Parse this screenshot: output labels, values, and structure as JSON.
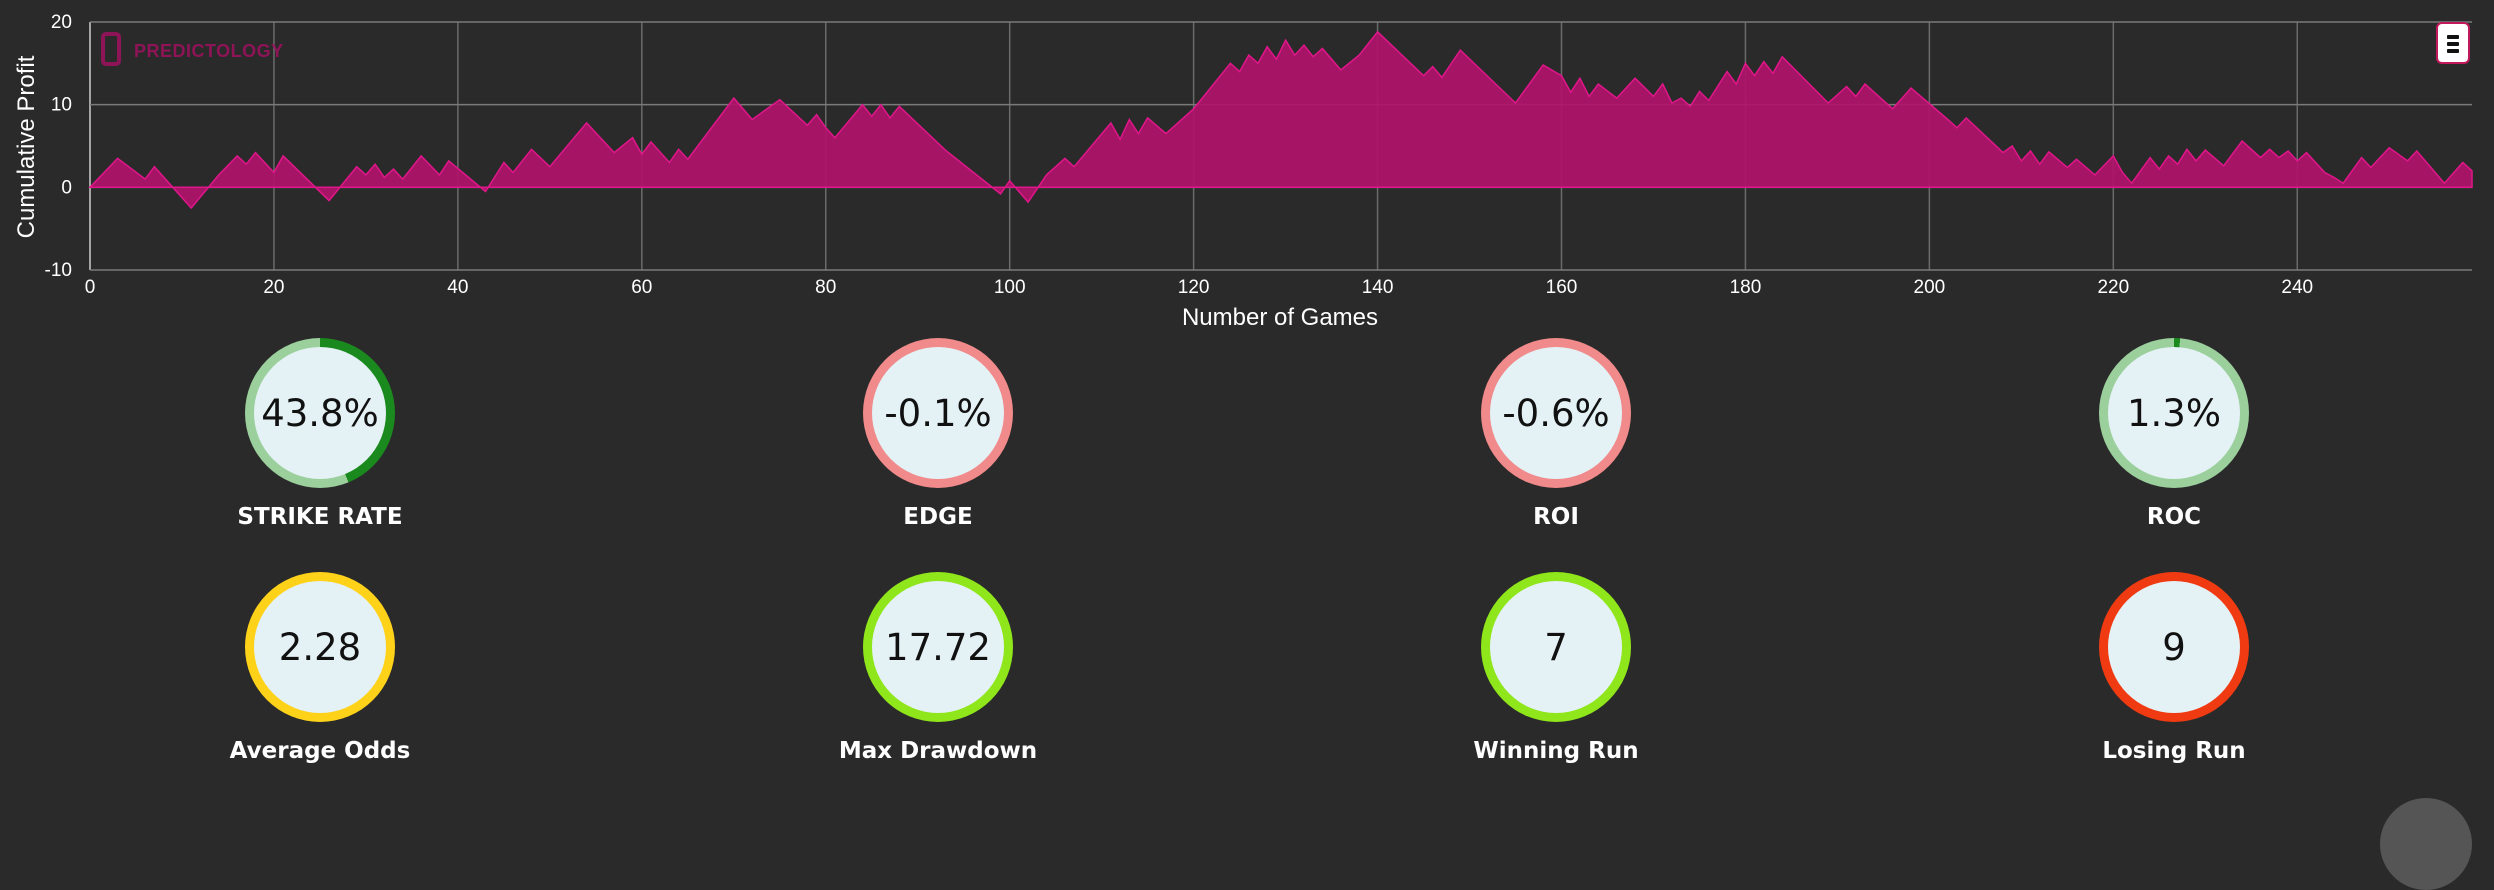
{
  "chart_data": {
    "type": "area",
    "brand": "PREDICTOLOGY",
    "xlabel": "Number of Games",
    "ylabel": "Cumulative Profit",
    "xlim": [
      0,
      259
    ],
    "ylim": [
      -10,
      20
    ],
    "x_ticks": [
      "0",
      "20",
      "40",
      "60",
      "80",
      "100",
      "120",
      "140",
      "160",
      "180",
      "200",
      "220",
      "240"
    ],
    "y_ticks": [
      "-10",
      "0",
      "10",
      "20"
    ],
    "grid": true,
    "color": "#b0126a",
    "anchors": [
      [
        0,
        0
      ],
      [
        3,
        3.5
      ],
      [
        6,
        1
      ],
      [
        7,
        2.5
      ],
      [
        11,
        -2.5
      ],
      [
        14,
        1.5
      ],
      [
        16,
        3.8
      ],
      [
        17,
        2.8
      ],
      [
        18,
        4.2
      ],
      [
        20,
        1.8
      ],
      [
        21,
        3.8
      ],
      [
        26,
        -1.6
      ],
      [
        29,
        2.5
      ],
      [
        30,
        1.5
      ],
      [
        31,
        2.8
      ],
      [
        32,
        1.2
      ],
      [
        33,
        2.2
      ],
      [
        34,
        1.0
      ],
      [
        36,
        3.8
      ],
      [
        38,
        1.5
      ],
      [
        39,
        3.2
      ],
      [
        43,
        -0.5
      ],
      [
        45,
        3
      ],
      [
        46,
        1.8
      ],
      [
        48,
        4.6
      ],
      [
        50,
        2.5
      ],
      [
        54,
        7.8
      ],
      [
        57,
        4.2
      ],
      [
        59,
        6
      ],
      [
        60,
        4
      ],
      [
        61,
        5.5
      ],
      [
        63,
        3
      ],
      [
        64,
        4.6
      ],
      [
        65,
        3.4
      ],
      [
        70,
        10.8
      ],
      [
        72,
        8.2
      ],
      [
        75,
        10.6
      ],
      [
        78,
        7.5
      ],
      [
        79,
        8.8
      ],
      [
        80,
        7.2
      ],
      [
        81,
        6
      ],
      [
        84,
        10
      ],
      [
        85,
        8.6
      ],
      [
        86,
        10
      ],
      [
        87,
        8.4
      ],
      [
        88,
        9.8
      ],
      [
        93,
        4.5
      ],
      [
        99,
        -0.8
      ],
      [
        100,
        0.8
      ],
      [
        101,
        -0.5
      ],
      [
        102,
        -1.8
      ],
      [
        104,
        1.5
      ],
      [
        106,
        3.5
      ],
      [
        107,
        2.5
      ],
      [
        111,
        7.8
      ],
      [
        112,
        5.8
      ],
      [
        113,
        8.2
      ],
      [
        114,
        6.5
      ],
      [
        115,
        8.4
      ],
      [
        117,
        6.5
      ],
      [
        120,
        9.5
      ],
      [
        124,
        15
      ],
      [
        125,
        14
      ],
      [
        126,
        16
      ],
      [
        127,
        15
      ],
      [
        128,
        17
      ],
      [
        129,
        15.5
      ],
      [
        130,
        17.8
      ],
      [
        131,
        16
      ],
      [
        132,
        17.2
      ],
      [
        133,
        15.8
      ],
      [
        134,
        16.8
      ],
      [
        136,
        14.2
      ],
      [
        138,
        16
      ],
      [
        140,
        18.8
      ],
      [
        145,
        13.5
      ],
      [
        146,
        14.6
      ],
      [
        147,
        13.3
      ],
      [
        149,
        16.6
      ],
      [
        155,
        10.2
      ],
      [
        158,
        14.8
      ],
      [
        160,
        13.5
      ],
      [
        161,
        11.5
      ],
      [
        162,
        13.2
      ],
      [
        163,
        11
      ],
      [
        164,
        12.5
      ],
      [
        166,
        10.8
      ],
      [
        168,
        13.2
      ],
      [
        170,
        11
      ],
      [
        171,
        12.5
      ],
      [
        172,
        10.2
      ],
      [
        173,
        10.8
      ],
      [
        174,
        9.8
      ],
      [
        175,
        11.6
      ],
      [
        176,
        10.5
      ],
      [
        178,
        14
      ],
      [
        179,
        12.5
      ],
      [
        180,
        15
      ],
      [
        181,
        13.5
      ],
      [
        182,
        15.2
      ],
      [
        183,
        13.8
      ],
      [
        184,
        15.8
      ],
      [
        189,
        10.2
      ],
      [
        191,
        12.2
      ],
      [
        192,
        11
      ],
      [
        193,
        12.5
      ],
      [
        196,
        9.5
      ],
      [
        198,
        12
      ],
      [
        202,
        8.2
      ],
      [
        203,
        7.2
      ],
      [
        204,
        8.4
      ],
      [
        208,
        4.2
      ],
      [
        209,
        5
      ],
      [
        210,
        3.2
      ],
      [
        211,
        4.4
      ],
      [
        212,
        2.8
      ],
      [
        213,
        4.3
      ],
      [
        215,
        2.4
      ],
      [
        216,
        3.4
      ],
      [
        218,
        1.5
      ],
      [
        220,
        3.8
      ],
      [
        221,
        1.8
      ],
      [
        222,
        0.5
      ],
      [
        224,
        3.6
      ],
      [
        225,
        2.2
      ],
      [
        226,
        3.8
      ],
      [
        227,
        2.8
      ],
      [
        228,
        4.6
      ],
      [
        229,
        3.2
      ],
      [
        230,
        4.5
      ],
      [
        232,
        2.6
      ],
      [
        234,
        5.6
      ],
      [
        236,
        3.6
      ],
      [
        237,
        4.6
      ],
      [
        238,
        3.6
      ],
      [
        239,
        4.4
      ],
      [
        240,
        3.2
      ],
      [
        241,
        4.2
      ],
      [
        243,
        1.8
      ],
      [
        244,
        1.2
      ],
      [
        245,
        0.5
      ],
      [
        247,
        3.6
      ],
      [
        248,
        2.4
      ],
      [
        250,
        4.8
      ],
      [
        252,
        3.2
      ],
      [
        253,
        4.4
      ],
      [
        256,
        0.5
      ],
      [
        258,
        3
      ],
      [
        259,
        2
      ]
    ]
  },
  "stats": [
    {
      "value": "43.8%",
      "label": "STRIKE RATE",
      "ring": "#1b8a1e",
      "track": "#9bd09d",
      "pct": 0.438
    },
    {
      "value": "-0.1%",
      "label": "EDGE",
      "ring": "#f18a8a",
      "track": "#f18a8a",
      "pct": 0
    },
    {
      "value": "-0.6%",
      "label": "ROI",
      "ring": "#f18a8a",
      "track": "#f18a8a",
      "pct": 0
    },
    {
      "value": "1.3%",
      "label": "ROC",
      "ring": "#1b8a1e",
      "track": "#9bd09d",
      "pct": 0.013
    },
    {
      "value": "2.28",
      "label": "Average Odds",
      "ring": "#ffd21a",
      "track": "#ffd21a",
      "pct": 1
    },
    {
      "value": "17.72",
      "label": "Max Drawdown",
      "ring": "#8fe61a",
      "track": "#8fe61a",
      "pct": 1
    },
    {
      "value": "7",
      "label": "Winning Run",
      "ring": "#8fe61a",
      "track": "#8fe61a",
      "pct": 1
    },
    {
      "value": "9",
      "label": "Losing Run",
      "ring": "#f03a12",
      "track": "#f03a12",
      "pct": 1
    }
  ]
}
